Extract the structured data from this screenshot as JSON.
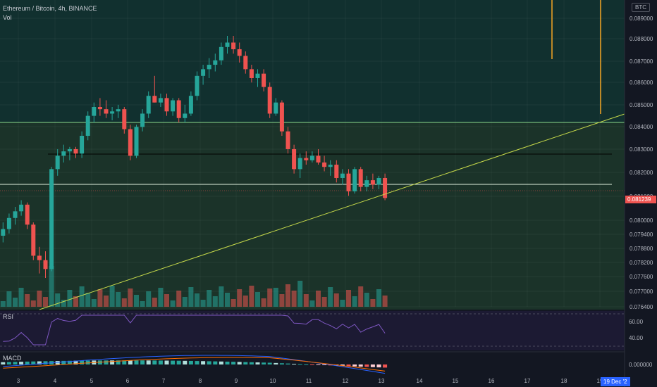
{
  "legend": {
    "symbol": "Ethereum / Bitcoin, 4h, BINANCE",
    "vol": "Vol"
  },
  "currency": "BTC",
  "price_badge": "0.081239",
  "date_badge": "19 Dec '2",
  "rsi": {
    "label": "RSI",
    "levels": [
      "60.00",
      "40.00"
    ]
  },
  "macd": {
    "label": "MACD",
    "zero": "0.000000"
  },
  "colors": {
    "up": "#26a69a",
    "down": "#ef5350",
    "trend": "#c6d94a",
    "zone": "#2a4a2e",
    "marker": "#f5a623"
  },
  "price_axis": [
    "0.089000",
    "0.088000",
    "0.087000",
    "0.086000",
    "0.085000",
    "0.084000",
    "0.083000",
    "0.082000",
    "0.081000",
    "0.080000",
    "0.079400",
    "0.078800",
    "0.078200",
    "0.077600",
    "0.077000",
    "0.076400"
  ],
  "time_axis": [
    "3",
    "4",
    "5",
    "6",
    "7",
    "8",
    "9",
    "10",
    "11",
    "12",
    "13",
    "14",
    "15",
    "16",
    "17",
    "18",
    "19"
  ],
  "chart_data": {
    "type": "candlestick",
    "xlabels": [
      "3",
      "4",
      "5",
      "6",
      "7",
      "8",
      "9",
      "10",
      "11",
      "12",
      "13",
      "14",
      "15",
      "16",
      "17",
      "18",
      "19"
    ],
    "candles": [
      [
        0.0795,
        0.0801,
        0.0792,
        0.0798
      ],
      [
        0.0798,
        0.0805,
        0.0796,
        0.0803
      ],
      [
        0.0803,
        0.0808,
        0.08,
        0.0806
      ],
      [
        0.0806,
        0.0811,
        0.0804,
        0.0809
      ],
      [
        0.0809,
        0.081,
        0.0798,
        0.08
      ],
      [
        0.08,
        0.0801,
        0.0784,
        0.0786
      ],
      [
        0.0786,
        0.079,
        0.0778,
        0.0784
      ],
      [
        0.0784,
        0.0788,
        0.0776,
        0.078
      ],
      [
        0.078,
        0.0826,
        0.0779,
        0.0825
      ],
      [
        0.0825,
        0.0834,
        0.0822,
        0.0831
      ],
      [
        0.0831,
        0.0836,
        0.0828,
        0.0833
      ],
      [
        0.0833,
        0.0835,
        0.0829,
        0.0834
      ],
      [
        0.0834,
        0.0835,
        0.083,
        0.0832
      ],
      [
        0.0832,
        0.0842,
        0.083,
        0.084
      ],
      [
        0.084,
        0.0851,
        0.0838,
        0.0849
      ],
      [
        0.0849,
        0.0855,
        0.0846,
        0.0853
      ],
      [
        0.0853,
        0.0857,
        0.0849,
        0.0852
      ],
      [
        0.0852,
        0.0856,
        0.0848,
        0.085
      ],
      [
        0.085,
        0.0853,
        0.0847,
        0.0851
      ],
      [
        0.0851,
        0.0854,
        0.0848,
        0.0852
      ],
      [
        0.0852,
        0.0853,
        0.0841,
        0.0843
      ],
      [
        0.0843,
        0.0845,
        0.0829,
        0.0831
      ],
      [
        0.0831,
        0.0845,
        0.083,
        0.0844
      ],
      [
        0.0844,
        0.0852,
        0.0842,
        0.085
      ],
      [
        0.085,
        0.086,
        0.0848,
        0.0858
      ],
      [
        0.0858,
        0.0867,
        0.0855,
        0.0855
      ],
      [
        0.0855,
        0.0859,
        0.0853,
        0.0857
      ],
      [
        0.0857,
        0.0859,
        0.0849,
        0.0851
      ],
      [
        0.0851,
        0.0857,
        0.0849,
        0.0856
      ],
      [
        0.0856,
        0.0857,
        0.0846,
        0.0848
      ],
      [
        0.0848,
        0.0854,
        0.0846,
        0.085
      ],
      [
        0.085,
        0.086,
        0.0849,
        0.0858
      ],
      [
        0.0858,
        0.0869,
        0.0856,
        0.0867
      ],
      [
        0.0867,
        0.0872,
        0.0863,
        0.087
      ],
      [
        0.087,
        0.0875,
        0.0866,
        0.0872
      ],
      [
        0.0872,
        0.0877,
        0.0869,
        0.0874
      ],
      [
        0.0874,
        0.0882,
        0.0872,
        0.088
      ],
      [
        0.088,
        0.0885,
        0.0877,
        0.0882
      ],
      [
        0.0882,
        0.0885,
        0.0877,
        0.0879
      ],
      [
        0.0879,
        0.0882,
        0.0873,
        0.0876
      ],
      [
        0.0876,
        0.0878,
        0.0868,
        0.087
      ],
      [
        0.087,
        0.0872,
        0.0864,
        0.0866
      ],
      [
        0.0866,
        0.087,
        0.0862,
        0.0868
      ],
      [
        0.0868,
        0.087,
        0.086,
        0.0862
      ],
      [
        0.0862,
        0.0864,
        0.0848,
        0.085
      ],
      [
        0.085,
        0.0857,
        0.0849,
        0.0855
      ],
      [
        0.0855,
        0.0856,
        0.084,
        0.0842
      ],
      [
        0.0842,
        0.0844,
        0.0832,
        0.0834
      ],
      [
        0.0834,
        0.0836,
        0.0823,
        0.0825
      ],
      [
        0.0825,
        0.0832,
        0.0821,
        0.083
      ],
      [
        0.083,
        0.0833,
        0.0827,
        0.0829
      ],
      [
        0.0829,
        0.0833,
        0.0828,
        0.0831
      ],
      [
        0.0831,
        0.0834,
        0.0827,
        0.0828
      ],
      [
        0.0828,
        0.0831,
        0.0824,
        0.0826
      ],
      [
        0.0826,
        0.0829,
        0.0822,
        0.0827
      ],
      [
        0.0827,
        0.0829,
        0.0819,
        0.0821
      ],
      [
        0.0821,
        0.0825,
        0.0818,
        0.0823
      ],
      [
        0.0823,
        0.0825,
        0.0813,
        0.0815
      ],
      [
        0.0815,
        0.0826,
        0.0814,
        0.0825
      ],
      [
        0.0825,
        0.0826,
        0.0815,
        0.0817
      ],
      [
        0.0817,
        0.0822,
        0.0815,
        0.082
      ],
      [
        0.082,
        0.0823,
        0.0816,
        0.0818
      ],
      [
        0.0818,
        0.0822,
        0.0816,
        0.0821
      ],
      [
        0.0821,
        0.0823,
        0.0811,
        0.0812
      ]
    ],
    "levels": [
      0.08415,
      0.08283,
      0.08147
    ],
    "trendline": [
      [
        8,
        0.0764
      ],
      [
        85,
        0.0848
      ]
    ],
    "ylim": [
      0.0763,
      0.0898
    ]
  }
}
